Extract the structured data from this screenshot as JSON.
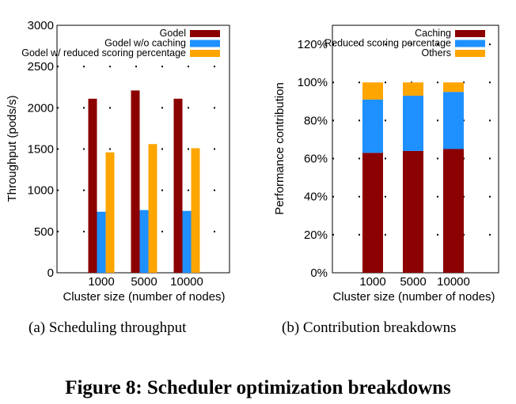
{
  "figure_caption": "Figure 8: Scheduler optimization breakdowns",
  "colors": {
    "darkred": "#8b0000",
    "blue": "#1e90ff",
    "orange": "#ffa500"
  },
  "chart_data": [
    {
      "type": "bar",
      "subcaption": "(a) Scheduling throughput",
      "xlabel": "Cluster size (number of nodes)",
      "ylabel": "Throughput (pods/s)",
      "categories": [
        "1000",
        "5000",
        "10000"
      ],
      "ylim": [
        0,
        3000
      ],
      "yticks": [
        "0",
        "500",
        "1000",
        "1500",
        "2000",
        "2500",
        "3000"
      ],
      "legend_position": "top-right",
      "series": [
        {
          "name": "Godel",
          "values": [
            2110,
            2210,
            2110
          ]
        },
        {
          "name": "Godel w/o caching",
          "values": [
            740,
            760,
            750
          ]
        },
        {
          "name": "Godel w/ reduced scoring percentage",
          "values": [
            1460,
            1560,
            1510
          ]
        }
      ]
    },
    {
      "type": "bar",
      "stacked": true,
      "subcaption": "(b) Contribution breakdowns",
      "xlabel": "Cluster size (number of nodes)",
      "ylabel": "Performance contribution",
      "categories": [
        "1000",
        "5000",
        "10000"
      ],
      "ylim": [
        0,
        130
      ],
      "yticks": [
        "0%",
        "20%",
        "40%",
        "60%",
        "80%",
        "100%",
        "120%"
      ],
      "legend_position": "top-right",
      "series": [
        {
          "name": "Caching",
          "values": [
            63,
            64,
            65
          ]
        },
        {
          "name": "Reduced scoring percentage",
          "values": [
            28,
            29,
            30
          ]
        },
        {
          "name": "Others",
          "values": [
            9,
            7,
            5
          ]
        }
      ]
    }
  ]
}
